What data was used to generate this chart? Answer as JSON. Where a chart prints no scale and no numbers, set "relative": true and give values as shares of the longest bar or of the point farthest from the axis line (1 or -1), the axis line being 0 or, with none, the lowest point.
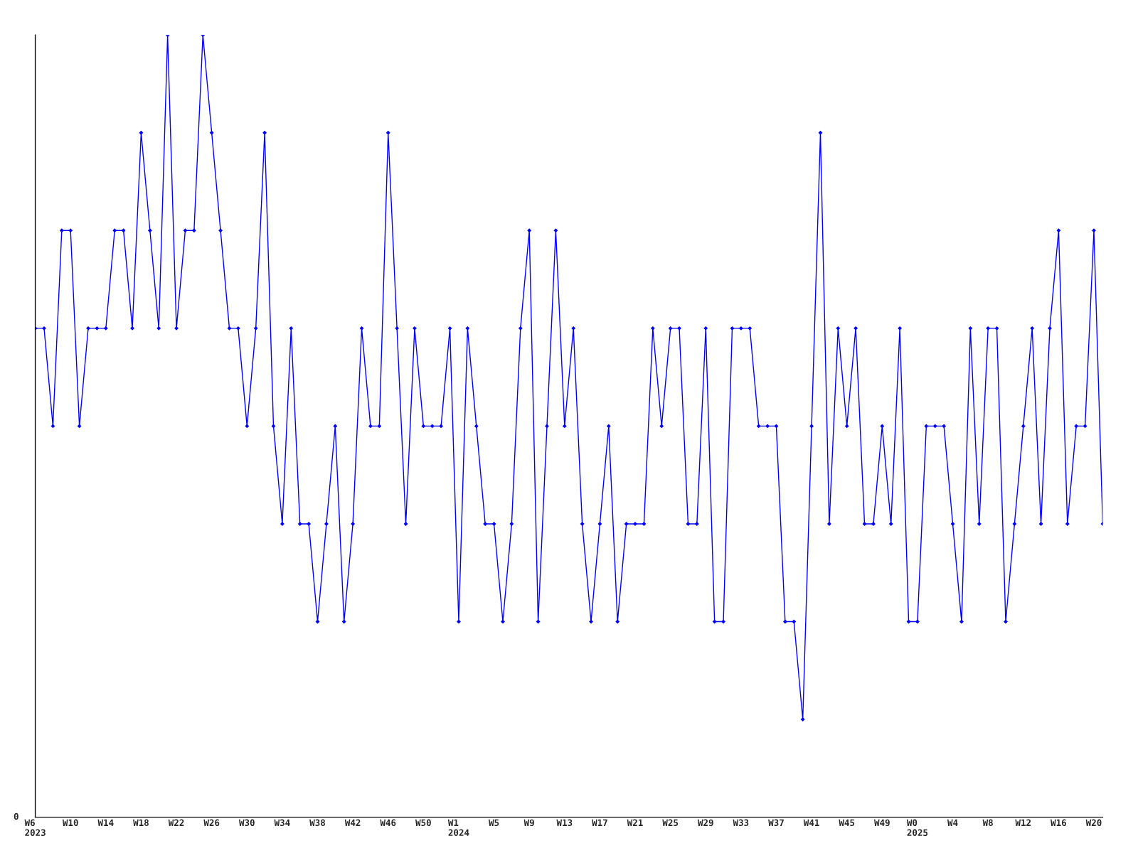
{
  "chart_data": {
    "type": "line",
    "relative": true,
    "categories": [
      "W6\n2023",
      null,
      null,
      null,
      "W10",
      null,
      null,
      null,
      "W14",
      null,
      null,
      null,
      "W18",
      null,
      null,
      null,
      "W22",
      null,
      null,
      null,
      "W26",
      null,
      null,
      null,
      "W30",
      null,
      null,
      null,
      "W34",
      null,
      null,
      null,
      "W38",
      null,
      null,
      null,
      "W42",
      null,
      null,
      null,
      "W46",
      null,
      null,
      null,
      "W50",
      null,
      null,
      null,
      "W1\n2024",
      null,
      null,
      null,
      "W5",
      null,
      null,
      null,
      "W9",
      null,
      null,
      null,
      "W13",
      null,
      null,
      null,
      "W17",
      null,
      null,
      null,
      "W21",
      null,
      null,
      null,
      "W25",
      null,
      null,
      null,
      "W29",
      null,
      null,
      null,
      "W33",
      null,
      null,
      null,
      "W37",
      null,
      null,
      null,
      "W41",
      null,
      null,
      null,
      "W45",
      null,
      null,
      null,
      "W49",
      null,
      null,
      null,
      "W0\n2025",
      null,
      null,
      null,
      "W4",
      null,
      null,
      null,
      "W8",
      null,
      null,
      null,
      "W12",
      null,
      null,
      null,
      "W16",
      null,
      null,
      null,
      "W20",
      null
    ],
    "series": [
      {
        "color": "#0000ff",
        "values": [
          0.625,
          0.625,
          0.5,
          0.75,
          0.75,
          0.5,
          0.625,
          0.625,
          0.625,
          0.75,
          0.75,
          0.625,
          0.875,
          0.75,
          0.625,
          1,
          0.625,
          0.75,
          0.75,
          1,
          0.875,
          0.75,
          0.625,
          0.625,
          0.5,
          0.625,
          0.875,
          0.5,
          0.375,
          0.625,
          0.375,
          0.375,
          0.25,
          0.375,
          0.5,
          0.25,
          0.375,
          0.625,
          0.5,
          0.5,
          0.875,
          0.625,
          0.375,
          0.625,
          0.5,
          0.5,
          0.5,
          0.625,
          0.25,
          0.625,
          0.5,
          0.375,
          0.375,
          0.25,
          0.375,
          0.625,
          0.75,
          0.25,
          0.5,
          0.75,
          0.5,
          0.625,
          0.375,
          0.25,
          0.375,
          0.5,
          0.25,
          0.375,
          0.375,
          0.375,
          0.625,
          0.5,
          0.625,
          0.625,
          0.375,
          0.375,
          0.625,
          0.25,
          0.25,
          0.625,
          0.625,
          0.625,
          0.5,
          0.5,
          0.5,
          0.25,
          0.25,
          0.125,
          0.5,
          0.875,
          0.375,
          0.625,
          0.5,
          0.625,
          0.375,
          0.375,
          0.5,
          0.375,
          0.625,
          0.25,
          0.25,
          0.5,
          0.5,
          0.5,
          0.375,
          0.25,
          0.625,
          0.375,
          0.625,
          0.625,
          0.25,
          0.375,
          0.5,
          0.625,
          0.375,
          0.625,
          0.75,
          0.375,
          0.5,
          0.5,
          0.75,
          0.375
        ]
      }
    ],
    "annotations": [
      "0"
    ],
    "marker": "diamond",
    "line_style": "solid"
  }
}
